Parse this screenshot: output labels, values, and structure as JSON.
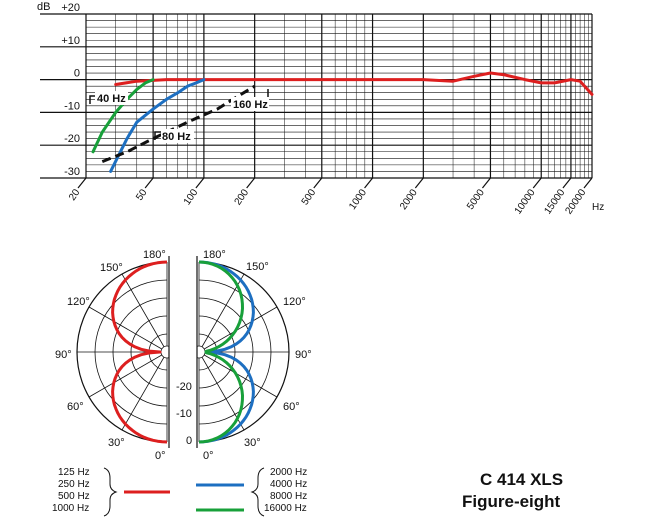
{
  "colors": {
    "red": "#dd1f1f",
    "blue": "#1d6fc1",
    "green": "#18a03a",
    "dashed": "#111111"
  },
  "freq_annotations": [
    "40 Hz",
    "80 Hz",
    "160 Hz"
  ],
  "polar": {
    "angle_labels": [
      "180°",
      "150°",
      "120°",
      "90°",
      "60°",
      "30°",
      "0°"
    ],
    "level_labels": [
      "-20",
      "-10",
      "0"
    ]
  },
  "legend": {
    "red_group": [
      "125 Hz",
      "250 Hz",
      "500 Hz",
      "1000 Hz"
    ],
    "blue_green_group": [
      "2000 Hz",
      "4000 Hz",
      "8000 Hz",
      "16000 Hz"
    ]
  },
  "model": {
    "name": "C 414 XLS",
    "pattern": "Figure-eight"
  },
  "chart_data": [
    {
      "type": "line",
      "xscale": "log",
      "xlim": [
        20,
        20000
      ],
      "ylim": [
        -30,
        20
      ],
      "ylabel": "dB",
      "xlabel": "Hz",
      "x_ticks": [
        20,
        50,
        100,
        200,
        500,
        1000,
        2000,
        5000,
        10000,
        15000,
        20000
      ],
      "y_ticks": [
        20,
        10,
        0,
        -10,
        -20,
        -30
      ],
      "y_tick_labels": [
        "+20",
        "+10",
        "0",
        "-10",
        "-20",
        "-30"
      ],
      "grid": true,
      "series": [
        {
          "color": "red",
          "style": "solid",
          "x": [
            30,
            40,
            60,
            100,
            200,
            500,
            1000,
            2000,
            3000,
            4000,
            5000,
            6000,
            8000,
            10000,
            12000,
            15000,
            17000,
            20000
          ],
          "y": [
            -1.5,
            -0.5,
            0,
            0,
            0,
            0,
            0,
            0,
            -0.5,
            1,
            2,
            1.5,
            0,
            -1,
            -1,
            0,
            -0.5,
            -4.5
          ]
        },
        {
          "color": "green",
          "style": "solid",
          "x": [
            22,
            25,
            30,
            35,
            40,
            45,
            50
          ],
          "y": [
            -22,
            -16,
            -10,
            -6,
            -3,
            -1,
            0
          ]
        },
        {
          "color": "blue",
          "style": "solid",
          "x": [
            28,
            35,
            40,
            50,
            60,
            70,
            80,
            90,
            100
          ],
          "y": [
            -28,
            -18,
            -13,
            -9,
            -6,
            -4,
            -2,
            -1,
            0
          ]
        },
        {
          "color": "black",
          "style": "dashed",
          "x": [
            25,
            35,
            50,
            80,
            120,
            160,
            200
          ],
          "y": [
            -25,
            -22,
            -18,
            -13,
            -9,
            -5,
            -2
          ]
        }
      ]
    },
    {
      "type": "polar",
      "angle_ticks_deg": [
        0,
        30,
        60,
        90,
        120,
        150,
        180
      ],
      "level_range_db": [
        -25,
        0
      ],
      "series": [
        {
          "color": "red",
          "pattern": "figure-eight",
          "side": "left"
        },
        {
          "color": "blue",
          "pattern": "figure-eight",
          "side": "right",
          "narrowing": "slight"
        },
        {
          "color": "green",
          "pattern": "figure-eight",
          "side": "right",
          "narrowing": "strong"
        }
      ]
    }
  ]
}
